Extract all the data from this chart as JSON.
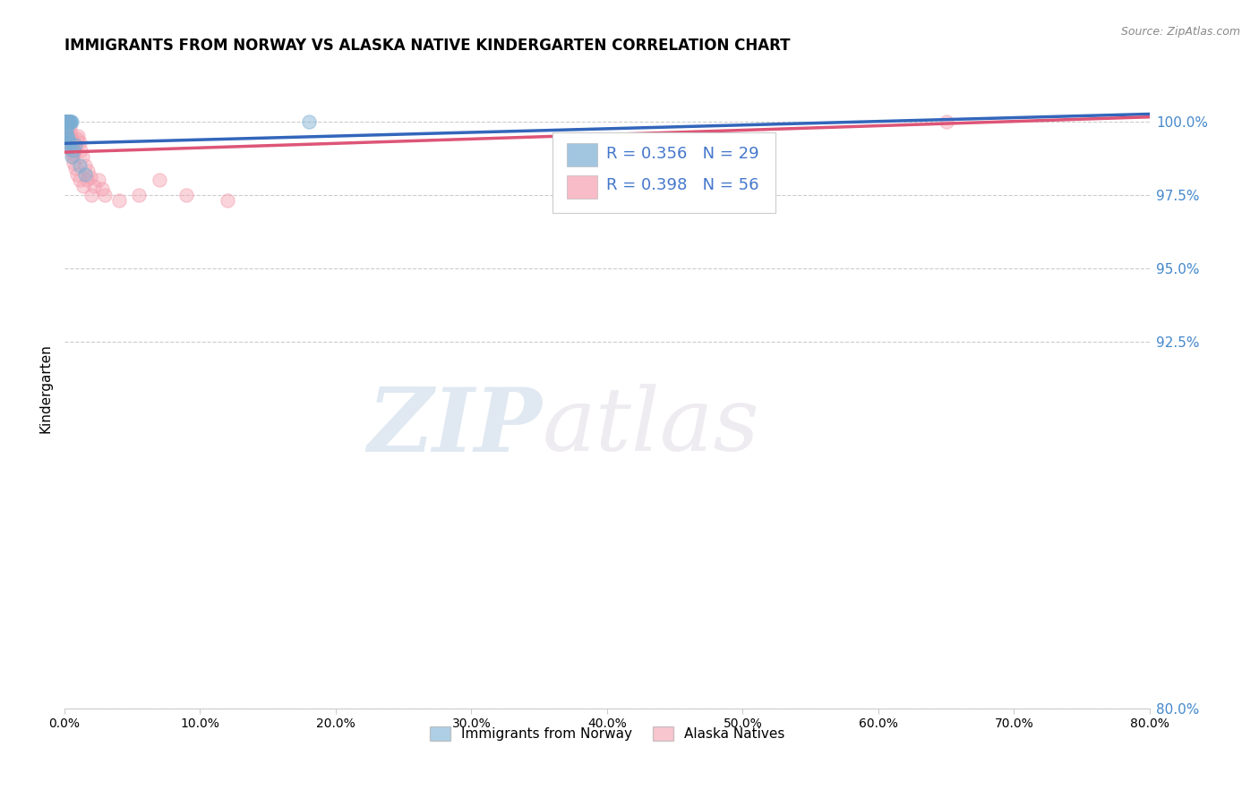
{
  "title": "IMMIGRANTS FROM NORWAY VS ALASKA NATIVE KINDERGARTEN CORRELATION CHART",
  "source": "Source: ZipAtlas.com",
  "ylabel": "Kindergarten",
  "watermark_zip": "ZIP",
  "watermark_atlas": "atlas",
  "blue_R": 0.356,
  "blue_N": 29,
  "pink_R": 0.398,
  "pink_N": 56,
  "blue_label": "Immigrants from Norway",
  "pink_label": "Alaska Natives",
  "blue_color": "#7BAFD4",
  "pink_color": "#F4A0B0",
  "blue_line_color": "#3366BB",
  "pink_line_color": "#DD5577",
  "xmin": 0.0,
  "xmax": 80.0,
  "ymin": 80.0,
  "ymax": 101.8,
  "right_yticks": [
    100.0,
    97.5,
    95.0,
    92.5,
    80.0
  ],
  "right_ytick_labels": [
    "100.0%",
    "97.5%",
    "95.0%",
    "92.5%",
    "80.0%"
  ],
  "blue_x": [
    0.05,
    0.08,
    0.12,
    0.15,
    0.18,
    0.2,
    0.22,
    0.25,
    0.28,
    0.3,
    0.33,
    0.37,
    0.4,
    0.45,
    0.5,
    0.1,
    0.14,
    0.19,
    0.24,
    0.35,
    0.42,
    0.55,
    0.65,
    0.8,
    1.1,
    1.5,
    18.0,
    0.07,
    0.09
  ],
  "blue_y": [
    100.0,
    100.0,
    100.0,
    100.0,
    100.0,
    100.0,
    100.0,
    100.0,
    100.0,
    100.0,
    100.0,
    100.0,
    100.0,
    100.0,
    100.0,
    99.8,
    99.7,
    99.5,
    99.4,
    99.3,
    99.1,
    98.8,
    99.0,
    99.2,
    98.5,
    98.2,
    100.0,
    99.6,
    99.3
  ],
  "pink_x": [
    0.05,
    0.08,
    0.1,
    0.12,
    0.15,
    0.18,
    0.2,
    0.22,
    0.25,
    0.28,
    0.3,
    0.35,
    0.4,
    0.45,
    0.5,
    0.55,
    0.6,
    0.65,
    0.7,
    0.8,
    0.9,
    1.0,
    1.1,
    1.2,
    1.3,
    1.5,
    1.7,
    1.9,
    2.2,
    2.5,
    3.0,
    0.14,
    0.17,
    0.23,
    0.32,
    0.38,
    0.48,
    0.58,
    0.68,
    0.78,
    0.95,
    1.15,
    1.4,
    1.65,
    2.0,
    2.8,
    4.0,
    5.5,
    7.0,
    9.0,
    12.0,
    65.0,
    0.07,
    0.09,
    0.11,
    0.16
  ],
  "pink_y": [
    100.0,
    100.0,
    100.0,
    100.0,
    100.0,
    100.0,
    100.0,
    100.0,
    100.0,
    100.0,
    100.0,
    100.0,
    99.8,
    99.6,
    99.4,
    99.3,
    99.1,
    98.9,
    99.0,
    99.2,
    99.4,
    99.5,
    99.3,
    99.0,
    98.8,
    98.5,
    98.3,
    98.1,
    97.8,
    98.0,
    97.5,
    99.9,
    99.8,
    99.6,
    99.4,
    99.2,
    99.0,
    98.8,
    98.6,
    98.4,
    98.2,
    98.0,
    97.8,
    98.0,
    97.5,
    97.7,
    97.3,
    97.5,
    98.0,
    97.5,
    97.3,
    100.0,
    99.9,
    99.8,
    99.7,
    99.5
  ],
  "dot_size": 120
}
